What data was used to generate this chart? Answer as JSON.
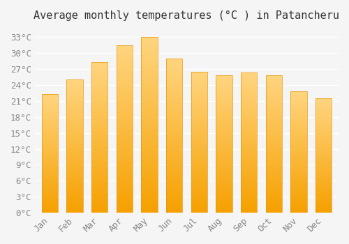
{
  "title": "Average monthly temperatures (°C ) in Patancheru",
  "months": [
    "Jan",
    "Feb",
    "Mar",
    "Apr",
    "May",
    "Jun",
    "Jul",
    "Aug",
    "Sep",
    "Oct",
    "Nov",
    "Dec"
  ],
  "temperatures": [
    22.3,
    25.0,
    28.3,
    31.5,
    33.0,
    29.0,
    26.5,
    25.8,
    26.3,
    25.8,
    22.8,
    21.5
  ],
  "bar_edge_color": "#E8960A",
  "ylim": [
    0,
    35
  ],
  "yticks": [
    0,
    3,
    6,
    9,
    12,
    15,
    18,
    21,
    24,
    27,
    30,
    33
  ],
  "ytick_labels": [
    "0°C",
    "3°C",
    "6°C",
    "9°C",
    "12°C",
    "15°C",
    "18°C",
    "21°C",
    "24°C",
    "27°C",
    "30°C",
    "33°C"
  ],
  "background_color": "#F5F5F5",
  "grid_color": "#FFFFFF",
  "title_fontsize": 11,
  "tick_fontsize": 9,
  "bar_gradient_light": "#FFD580",
  "bar_gradient_dark": "#F5A000"
}
